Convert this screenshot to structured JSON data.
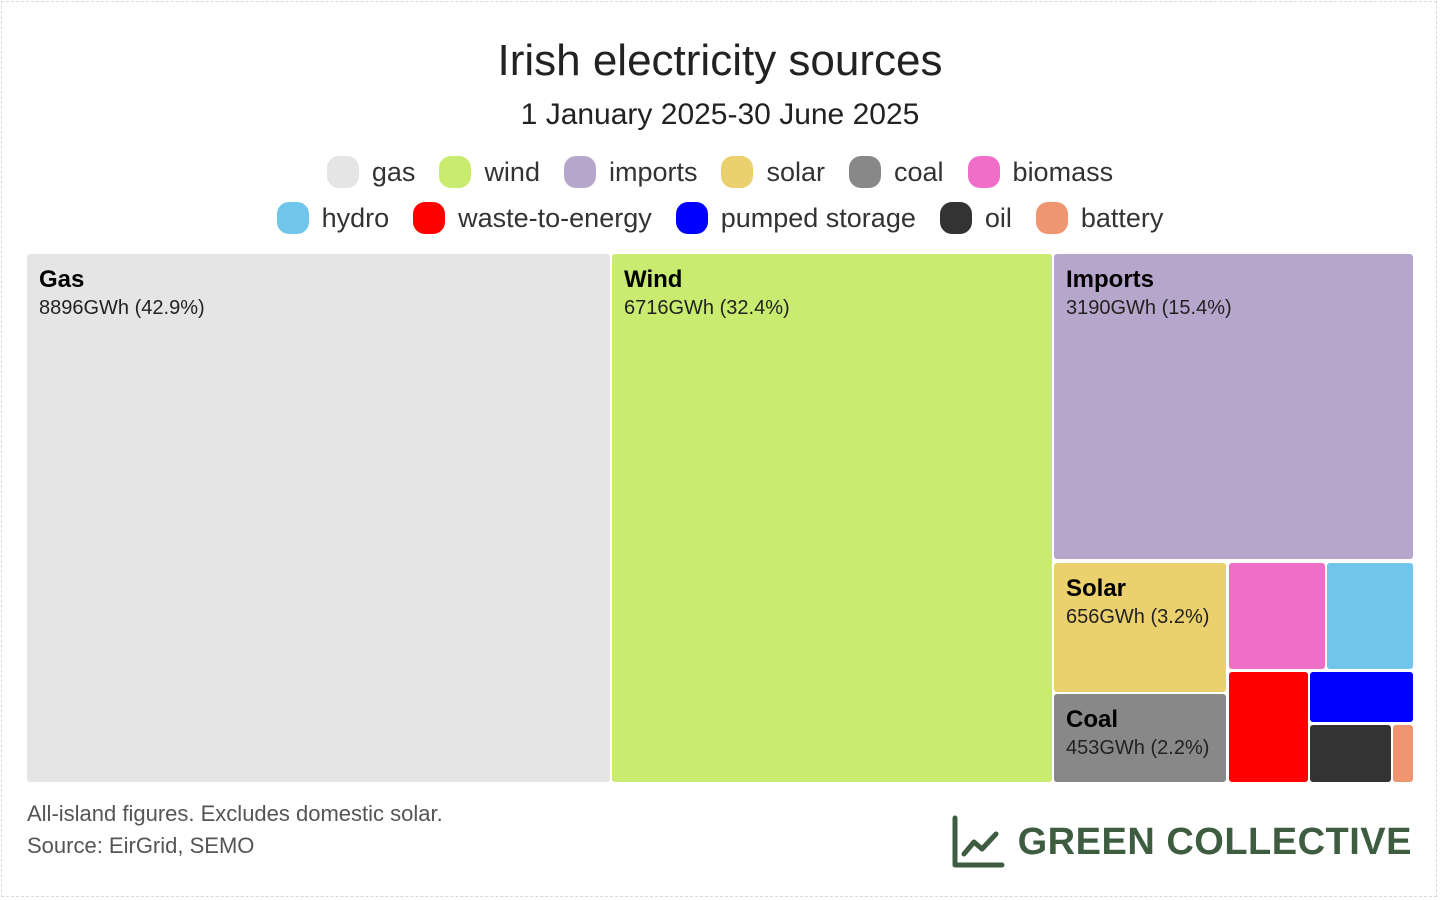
{
  "title": "Irish electricity sources",
  "subtitle": "1 January 2025-30 June 2025",
  "footnote": {
    "line1": "All-island figures. Excludes domestic solar.",
    "line2": "Source: EirGrid, SEMO"
  },
  "brand": {
    "name": "GREEN COLLECTIVE",
    "icon": "line-chart-icon",
    "color": "#3d5c40"
  },
  "chart_data": {
    "type": "treemap",
    "title": "Irish electricity sources",
    "subtitle": "1 January 2025-30 June 2025",
    "unit": "GWh",
    "legend": [
      {
        "name": "gas",
        "color": "#e5e5e5"
      },
      {
        "name": "wind",
        "color": "#c9eb6f"
      },
      {
        "name": "imports",
        "color": "#b6a6cc"
      },
      {
        "name": "solar",
        "color": "#ead16e"
      },
      {
        "name": "coal",
        "color": "#888888"
      },
      {
        "name": "biomass",
        "color": "#ef6fc8"
      },
      {
        "name": "hydro",
        "color": "#6fc6ea"
      },
      {
        "name": "waste-to-energy",
        "color": "#ff0000"
      },
      {
        "name": "pumped storage",
        "color": "#0000ff"
      },
      {
        "name": "oil",
        "color": "#333333"
      },
      {
        "name": "battery",
        "color": "#ef9570"
      }
    ],
    "series": [
      {
        "key": "gas",
        "name": "Gas",
        "value": 8896,
        "label": "8896GWh (42.9%)"
      },
      {
        "key": "wind",
        "name": "Wind",
        "value": 6716,
        "label": "6716GWh (32.4%)"
      },
      {
        "key": "imports",
        "name": "Imports",
        "value": 3190,
        "label": "3190GWh (15.4%)"
      },
      {
        "key": "solar",
        "name": "Solar",
        "value": 656,
        "label": "656GWh (3.2%)"
      },
      {
        "key": "coal",
        "name": "Coal",
        "value": 453,
        "label": "453GWh (2.2%)"
      },
      {
        "key": "biomass",
        "name": "",
        "value": null,
        "label": ""
      },
      {
        "key": "hydro",
        "name": "",
        "value": null,
        "label": ""
      },
      {
        "key": "waste-to-energy",
        "name": "",
        "value": null,
        "label": ""
      },
      {
        "key": "pumped storage",
        "name": "",
        "value": null,
        "label": ""
      },
      {
        "key": "oil",
        "name": "",
        "value": null,
        "label": ""
      },
      {
        "key": "battery",
        "name": "",
        "value": null,
        "label": ""
      }
    ]
  }
}
